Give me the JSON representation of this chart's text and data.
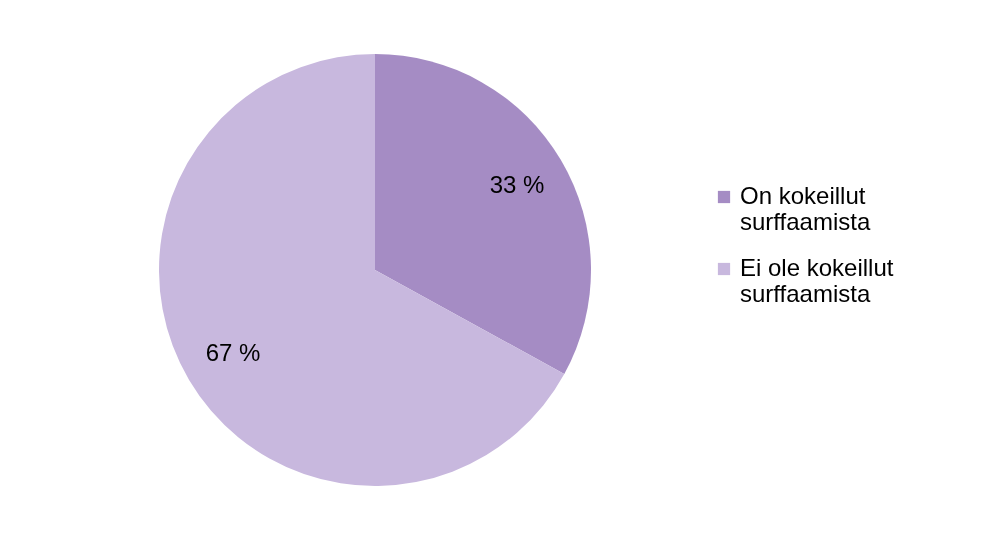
{
  "chart_data": {
    "type": "pie",
    "categories": [
      "On kokeillut surffaamista",
      "Ei ole kokeillut surffaamista"
    ],
    "values": [
      33,
      67
    ],
    "colors": [
      "#a58cc4",
      "#c8b8de"
    ],
    "value_labels": [
      "33 %",
      "67 %"
    ],
    "legend": "right"
  }
}
